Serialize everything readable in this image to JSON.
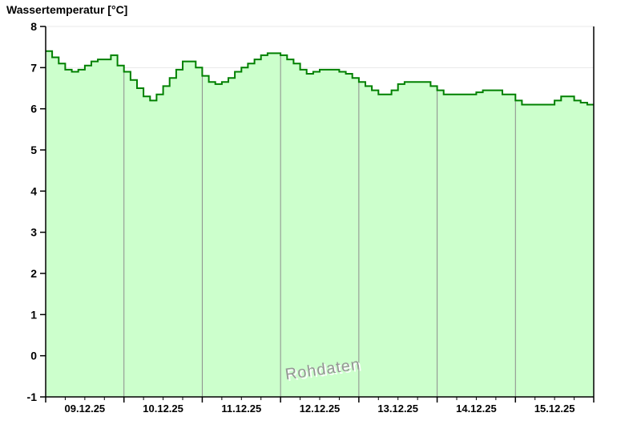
{
  "chart": {
    "title": "Wassertemperatur [°C]",
    "watermark": "Rohdaten"
  },
  "chart_data": {
    "type": "area",
    "title": "Wassertemperatur [°C]",
    "ylabel": "Wassertemperatur [°C]",
    "xlabel": "",
    "ylim": [
      -1,
      8
    ],
    "yticks": [
      8,
      7,
      6,
      5,
      4,
      3,
      2,
      1,
      0,
      -1
    ],
    "categories": [
      "09.12.25",
      "10.12.25",
      "11.12.25",
      "12.12.25",
      "13.12.25",
      "14.12.25",
      "15.12.25"
    ],
    "x_range": [
      "09.12.25 00:00",
      "16.12.25 00:00"
    ],
    "sample_interval_hours": 2,
    "minor_xtick_interval_hours": 6,
    "grid": "horizontal light gray at integers; vertical gray at day boundaries clipped to filled area",
    "legend_position": "none",
    "series": [
      {
        "name": "Wassertemperatur",
        "unit": "°C",
        "values": [
          7.4,
          7.25,
          7.1,
          6.95,
          6.9,
          6.95,
          7.05,
          7.15,
          7.2,
          7.2,
          7.3,
          7.05,
          6.9,
          6.7,
          6.5,
          6.3,
          6.2,
          6.35,
          6.55,
          6.75,
          6.95,
          7.15,
          7.15,
          7.0,
          6.8,
          6.65,
          6.6,
          6.65,
          6.75,
          6.9,
          7.0,
          7.1,
          7.2,
          7.3,
          7.35,
          7.35,
          7.3,
          7.2,
          7.1,
          6.95,
          6.85,
          6.9,
          6.95,
          6.95,
          6.95,
          6.9,
          6.85,
          6.75,
          6.65,
          6.55,
          6.45,
          6.35,
          6.35,
          6.45,
          6.6,
          6.65,
          6.65,
          6.65,
          6.65,
          6.55,
          6.45,
          6.35,
          6.35,
          6.35,
          6.35,
          6.35,
          6.4,
          6.45,
          6.45,
          6.45,
          6.35,
          6.35,
          6.2,
          6.1,
          6.1,
          6.1,
          6.1,
          6.1,
          6.2,
          6.3,
          6.3,
          6.2,
          6.15,
          6.1
        ]
      }
    ],
    "colors": {
      "line": "#008000",
      "fill": "#ccffcc",
      "day_gridline": "#8c8c8c",
      "h_gridline": "#e8e8e8",
      "axis": "#000000",
      "watermark": "#969696"
    }
  }
}
